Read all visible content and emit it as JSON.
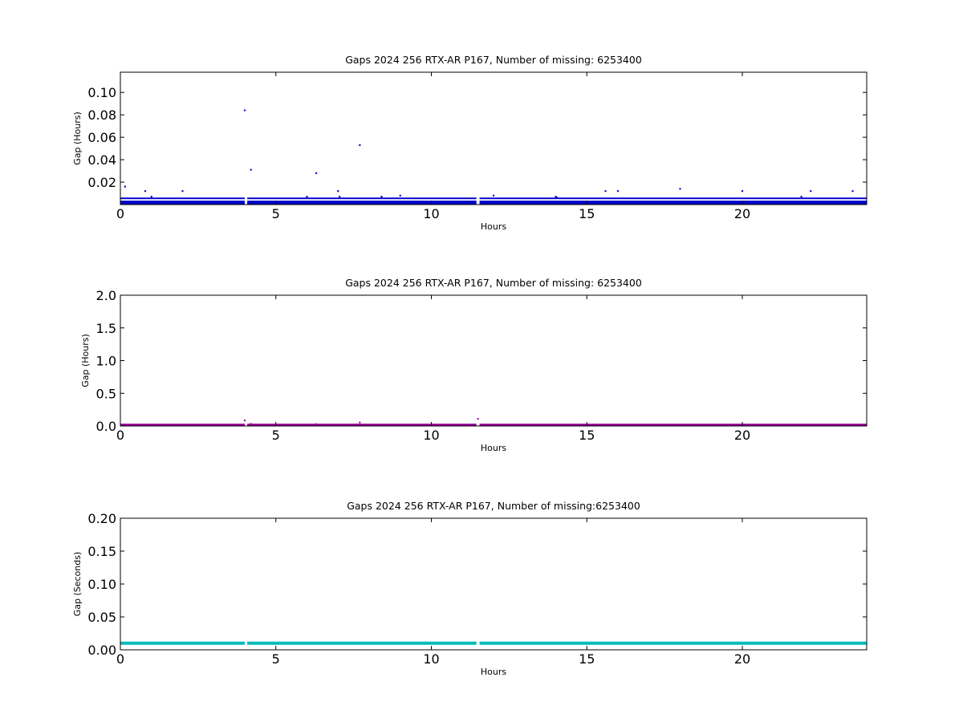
{
  "chart_data": [
    {
      "type": "scatter",
      "title": "Gaps 2024 256 RTX-AR  P167, Number of missing: 6253400",
      "xlabel": "Hours",
      "ylabel": "Gap (Hours)",
      "xlim": [
        0,
        24
      ],
      "ylim": [
        0,
        0.118
      ],
      "xticks": [
        0,
        5,
        10,
        15,
        20
      ],
      "yticks": [
        0.02,
        0.04,
        0.06,
        0.08,
        0.1
      ],
      "ytick_labels": [
        "0.02",
        "0.04",
        "0.06",
        "0.08",
        "0.10"
      ],
      "color": "#0000cc",
      "series": [
        {
          "bands": [
            {
              "value": 0.0055,
              "x_ranges": [
                [
                  0,
                  4.0
                ],
                [
                  4.08,
                  11.45
                ],
                [
                  11.55,
                  24
                ]
              ]
            },
            {
              "value": 0.0028,
              "x_ranges": [
                [
                  0,
                  4.0
                ],
                [
                  4.08,
                  11.45
                ],
                [
                  11.55,
                  24
                ]
              ]
            },
            {
              "value": 0.0014,
              "x_ranges": [
                [
                  0,
                  4.0
                ],
                [
                  4.08,
                  11.45
                ],
                [
                  11.55,
                  24
                ]
              ]
            },
            {
              "value": 0.0003,
              "x_ranges": [
                [
                  0,
                  4.0
                ],
                [
                  4.08,
                  11.45
                ],
                [
                  11.55,
                  24
                ]
              ]
            }
          ],
          "points": [
            [
              0.15,
              0.016
            ],
            [
              0.8,
              0.012
            ],
            [
              0.8,
              0.002
            ],
            [
              1.0,
              0.007
            ],
            [
              2.0,
              0.012
            ],
            [
              4.0,
              0.084
            ],
            [
              4.2,
              0.031
            ],
            [
              6.0,
              0.007
            ],
            [
              6.3,
              0.028
            ],
            [
              6.3,
              0.002
            ],
            [
              7.0,
              0.012
            ],
            [
              7.05,
              0.007
            ],
            [
              7.7,
              0.053
            ],
            [
              8.4,
              0.007
            ],
            [
              9.0,
              0.008
            ],
            [
              12.0,
              0.008
            ],
            [
              14.0,
              0.007
            ],
            [
              14.05,
              0.006
            ],
            [
              15.6,
              0.012
            ],
            [
              16.0,
              0.012
            ],
            [
              18.0,
              0.014
            ],
            [
              20.0,
              0.012
            ],
            [
              21.9,
              0.007
            ],
            [
              22.2,
              0.012
            ],
            [
              23.55,
              0.012
            ]
          ]
        }
      ]
    },
    {
      "type": "scatter",
      "title": "Gaps 2024 256 RTX-AR  P167, Number of missing: 6253400",
      "xlabel": "Hours",
      "ylabel": "Gap (Hours)",
      "xlim": [
        0,
        24
      ],
      "ylim": [
        0,
        2.0
      ],
      "xticks": [
        0,
        5,
        10,
        15,
        20
      ],
      "yticks": [
        0.0,
        0.5,
        1.0,
        1.5,
        2.0
      ],
      "ytick_labels": [
        "0.0",
        "0.5",
        "1.0",
        "1.5",
        "2.0"
      ],
      "color": "#990099",
      "series": [
        {
          "bands": [
            {
              "value": 0.01,
              "x_ranges": [
                [
                  0,
                  4.0
                ],
                [
                  4.08,
                  11.45
                ],
                [
                  11.55,
                  24
                ]
              ]
            }
          ],
          "points": [
            [
              4.0,
              0.084
            ],
            [
              4.2,
              0.031
            ],
            [
              6.3,
              0.028
            ],
            [
              7.7,
              0.053
            ],
            [
              11.5,
              0.11
            ]
          ]
        }
      ]
    },
    {
      "type": "scatter",
      "title": "Gaps 2024 256 RTX-AR  P167, Number of missing:6253400",
      "xlabel": "Hours",
      "ylabel": "Gap (Seconds)",
      "xlim": [
        0,
        24
      ],
      "ylim": [
        0,
        0.2
      ],
      "xticks": [
        0,
        5,
        10,
        15,
        20
      ],
      "yticks": [
        0.0,
        0.05,
        0.1,
        0.15,
        0.2
      ],
      "ytick_labels": [
        "0.00",
        "0.05",
        "0.10",
        "0.15",
        "0.20"
      ],
      "color": "#00bbbb",
      "series": [
        {
          "bands": [
            {
              "value": 0.01,
              "x_ranges": [
                [
                  0,
                  4.0
                ],
                [
                  4.08,
                  11.45
                ],
                [
                  11.55,
                  24
                ]
              ]
            }
          ],
          "points": []
        }
      ]
    }
  ]
}
